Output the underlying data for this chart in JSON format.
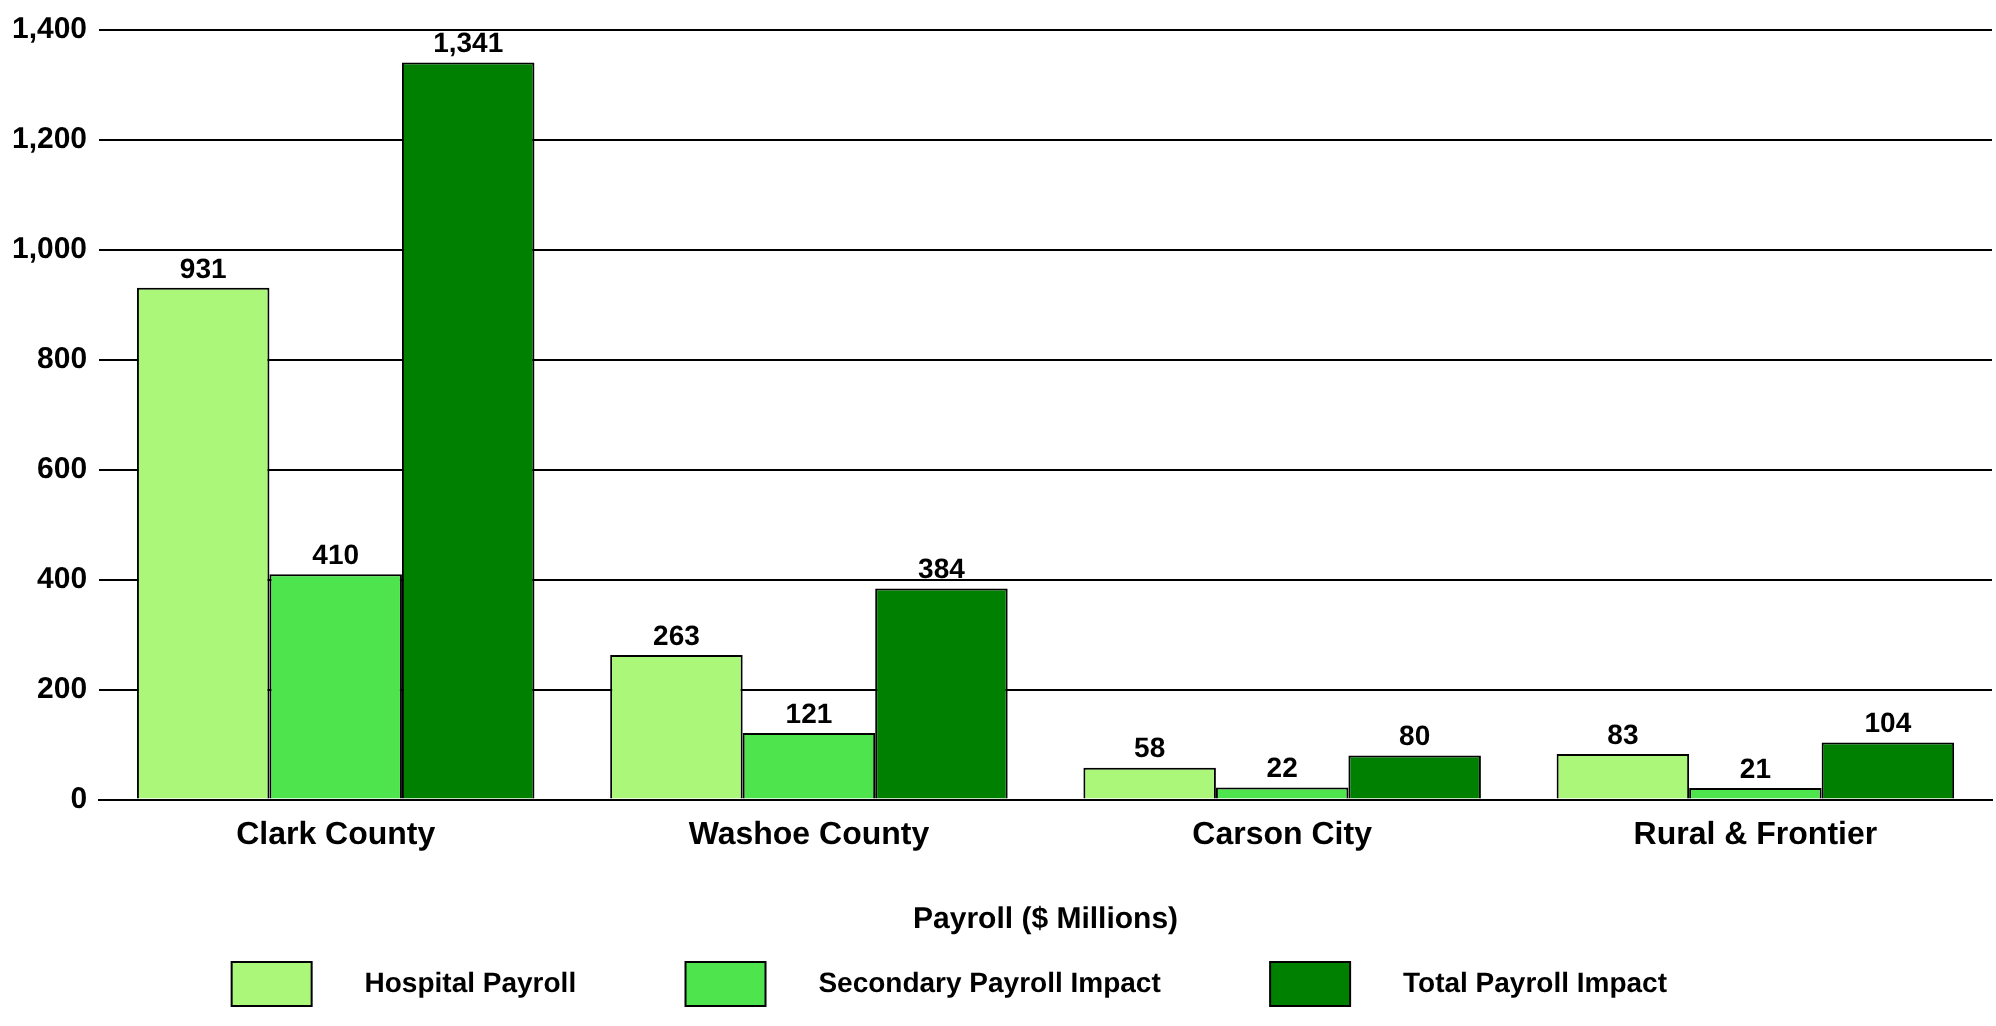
{
  "chart_data": {
    "type": "bar",
    "xlabel": "Payroll ($ Millions)",
    "categories": [
      "Clark County",
      "Washoe County",
      "Carson City",
      "Rural & Frontier"
    ],
    "series": [
      {
        "name": "Hospital Payroll",
        "color": "#aaf77a",
        "values": [
          931,
          263,
          58,
          83
        ],
        "value_labels": [
          "931",
          "263",
          "58",
          "83"
        ]
      },
      {
        "name": "Secondary Payroll Impact",
        "color": "#4ee44e",
        "values": [
          410,
          121,
          22,
          21
        ],
        "value_labels": [
          "410",
          "121",
          "22",
          "21"
        ]
      },
      {
        "name": "Total Payroll Impact",
        "color": "#008000",
        "values": [
          1341,
          384,
          80,
          104
        ],
        "value_labels": [
          "1,341",
          "384",
          "80",
          "104"
        ]
      }
    ],
    "ylim": [
      0,
      1400
    ],
    "yticks": [
      0,
      200,
      400,
      600,
      800,
      {
        "value": 1000,
        "label": "1,000"
      },
      {
        "value": 1200,
        "label": "1,200"
      },
      {
        "value": 1400,
        "label": "1,400"
      }
    ],
    "grid": "y",
    "legend": "bottom"
  }
}
